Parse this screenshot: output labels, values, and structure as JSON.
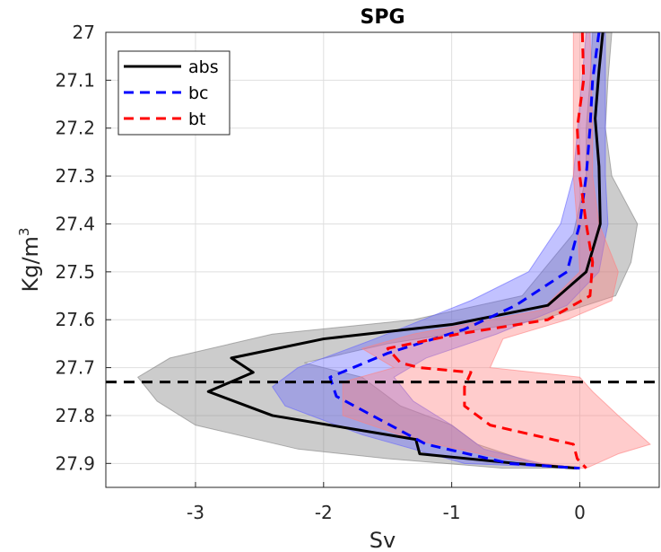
{
  "chart_data": {
    "type": "line",
    "title": "SPG",
    "xlabel": "Sv",
    "ylabel_base": "Kg/m",
    "ylabel_sup": "3",
    "xlim": [
      -3.7,
      0.62
    ],
    "ylim": [
      27.0,
      27.95
    ],
    "y_reversed": true,
    "grid": true,
    "legend_position": "top-left",
    "x_ticks": [
      -3,
      -2,
      -1,
      0
    ],
    "x_tick_labels": [
      "-3",
      "-2",
      "-1",
      "0"
    ],
    "y_ticks": [
      27.0,
      27.1,
      27.2,
      27.3,
      27.4,
      27.5,
      27.6,
      27.7,
      27.8,
      27.9
    ],
    "y_tick_labels": [
      "27",
      "27.1",
      "27.2",
      "27.3",
      "27.4",
      "27.5",
      "27.6",
      "27.7",
      "27.8",
      "27.9"
    ],
    "reference_line_y": 27.73,
    "series": [
      {
        "name": "abs",
        "color": "#000000",
        "dash": "solid",
        "fill": "#808080",
        "points": [
          [
            0.18,
            27.0
          ],
          [
            0.15,
            27.08
          ],
          [
            0.12,
            27.18
          ],
          [
            0.15,
            27.28
          ],
          [
            0.16,
            27.4
          ],
          [
            0.05,
            27.5
          ],
          [
            -0.25,
            27.57
          ],
          [
            -1.0,
            27.61
          ],
          [
            -2.0,
            27.64
          ],
          [
            -2.72,
            27.68
          ],
          [
            -2.55,
            27.71
          ],
          [
            -2.9,
            27.75
          ],
          [
            -2.4,
            27.8
          ],
          [
            -1.28,
            27.85
          ],
          [
            -1.25,
            27.88
          ],
          [
            -0.5,
            27.9
          ],
          [
            -0.02,
            27.91
          ]
        ],
        "lower": [
          [
            0.1,
            27.0
          ],
          [
            0.08,
            27.1
          ],
          [
            0.05,
            27.2
          ],
          [
            0.05,
            27.3
          ],
          [
            -0.05,
            27.42
          ],
          [
            -0.45,
            27.55
          ],
          [
            -1.3,
            27.6
          ],
          [
            -2.4,
            27.63
          ],
          [
            -3.2,
            27.68
          ],
          [
            -3.45,
            27.72
          ],
          [
            -3.3,
            27.77
          ],
          [
            -3.0,
            27.82
          ],
          [
            -2.2,
            27.87
          ],
          [
            -1.5,
            27.89
          ],
          [
            -0.6,
            27.91
          ],
          [
            -0.05,
            27.91
          ]
        ],
        "upper": [
          [
            0.25,
            27.0
          ],
          [
            0.22,
            27.1
          ],
          [
            0.2,
            27.2
          ],
          [
            0.25,
            27.3
          ],
          [
            0.45,
            27.4
          ],
          [
            0.4,
            27.48
          ],
          [
            0.28,
            27.55
          ],
          [
            -0.3,
            27.6
          ],
          [
            -1.5,
            27.65
          ],
          [
            -2.15,
            27.69
          ],
          [
            -1.7,
            27.72
          ],
          [
            -1.4,
            27.78
          ],
          [
            -1.0,
            27.82
          ],
          [
            -0.8,
            27.86
          ],
          [
            -0.35,
            27.9
          ],
          [
            0.0,
            27.91
          ]
        ]
      },
      {
        "name": "bc",
        "color": "#0000ff",
        "dash": "dashed",
        "fill": "#6666ff",
        "points": [
          [
            0.15,
            27.0
          ],
          [
            0.1,
            27.1
          ],
          [
            0.08,
            27.2
          ],
          [
            0.05,
            27.3
          ],
          [
            0.0,
            27.4
          ],
          [
            -0.1,
            27.5
          ],
          [
            -0.5,
            27.57
          ],
          [
            -0.9,
            27.62
          ],
          [
            -1.5,
            27.67
          ],
          [
            -1.95,
            27.72
          ],
          [
            -1.9,
            27.76
          ],
          [
            -1.55,
            27.81
          ],
          [
            -1.2,
            27.86
          ],
          [
            -0.55,
            27.9
          ],
          [
            0.0,
            27.91
          ]
        ],
        "lower": [
          [
            0.05,
            27.0
          ],
          [
            0.0,
            27.15
          ],
          [
            -0.05,
            27.3
          ],
          [
            -0.15,
            27.4
          ],
          [
            -0.4,
            27.5
          ],
          [
            -0.85,
            27.56
          ],
          [
            -1.6,
            27.64
          ],
          [
            -2.2,
            27.7
          ],
          [
            -2.4,
            27.74
          ],
          [
            -2.3,
            27.78
          ],
          [
            -1.7,
            27.84
          ],
          [
            -0.9,
            27.9
          ],
          [
            0.0,
            27.91
          ]
        ],
        "upper": [
          [
            0.2,
            27.0
          ],
          [
            0.2,
            27.15
          ],
          [
            0.2,
            27.3
          ],
          [
            0.22,
            27.4
          ],
          [
            0.15,
            27.5
          ],
          [
            -0.1,
            27.57
          ],
          [
            -0.65,
            27.63
          ],
          [
            -1.2,
            27.68
          ],
          [
            -1.45,
            27.72
          ],
          [
            -1.3,
            27.77
          ],
          [
            -1.0,
            27.82
          ],
          [
            -0.75,
            27.87
          ],
          [
            -0.3,
            27.9
          ],
          [
            0.0,
            27.91
          ]
        ]
      },
      {
        "name": "bt",
        "color": "#ff0000",
        "dash": "dashed",
        "fill": "#ff8080",
        "points": [
          [
            0.02,
            27.0
          ],
          [
            0.03,
            27.1
          ],
          [
            -0.02,
            27.2
          ],
          [
            0.0,
            27.3
          ],
          [
            0.05,
            27.4
          ],
          [
            0.1,
            27.48
          ],
          [
            0.08,
            27.55
          ],
          [
            -0.25,
            27.6
          ],
          [
            -0.95,
            27.63
          ],
          [
            -1.5,
            27.66
          ],
          [
            -1.4,
            27.69
          ],
          [
            -1.25,
            27.7
          ],
          [
            -0.85,
            27.71
          ],
          [
            -0.9,
            27.74
          ],
          [
            -0.9,
            27.78
          ],
          [
            -0.7,
            27.82
          ],
          [
            -0.05,
            27.86
          ],
          [
            -0.02,
            27.89
          ],
          [
            0.05,
            27.91
          ]
        ],
        "lower": [
          [
            -0.05,
            27.0
          ],
          [
            -0.05,
            27.2
          ],
          [
            -0.05,
            27.3
          ],
          [
            -0.02,
            27.4
          ],
          [
            0.0,
            27.5
          ],
          [
            -0.3,
            27.58
          ],
          [
            -1.3,
            27.63
          ],
          [
            -1.7,
            27.66
          ],
          [
            -1.45,
            27.7
          ],
          [
            -1.85,
            27.73
          ],
          [
            -1.85,
            27.77
          ],
          [
            -1.85,
            27.8
          ],
          [
            -1.3,
            27.85
          ],
          [
            -0.6,
            27.89
          ],
          [
            0.0,
            27.91
          ]
        ],
        "upper": [
          [
            0.08,
            27.0
          ],
          [
            0.1,
            27.2
          ],
          [
            0.1,
            27.3
          ],
          [
            0.15,
            27.4
          ],
          [
            0.3,
            27.5
          ],
          [
            0.25,
            27.56
          ],
          [
            -0.1,
            27.6
          ],
          [
            -0.6,
            27.64
          ],
          [
            -0.7,
            27.7
          ],
          [
            0.0,
            27.72
          ],
          [
            0.1,
            27.75
          ],
          [
            0.3,
            27.8
          ],
          [
            0.55,
            27.86
          ],
          [
            0.3,
            27.88
          ],
          [
            0.05,
            27.91
          ]
        ]
      }
    ]
  }
}
